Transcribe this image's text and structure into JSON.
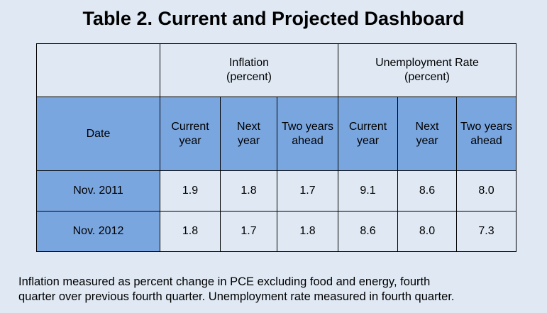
{
  "title": "Table 2. Current and Projected Dashboard",
  "table": {
    "groups": [
      {
        "label": "Inflation\n(percent)"
      },
      {
        "label": "Unemployment Rate\n(percent)"
      }
    ],
    "date_header": "Date",
    "subheaders": [
      "Current\nyear",
      "Next\nyear",
      "Two years\nahead",
      "Current\nyear",
      "Next\nyear",
      "Two years\nahead"
    ],
    "rows": [
      {
        "date": "Nov. 2011",
        "values": [
          "1.9",
          "1.8",
          "1.7",
          "9.1",
          "8.6",
          "8.0"
        ]
      },
      {
        "date": "Nov. 2012",
        "values": [
          "1.8",
          "1.7",
          "1.8",
          "8.6",
          "8.0",
          "7.3"
        ]
      }
    ]
  },
  "caption": "Inflation measured as percent change in PCE excluding food and energy, fourth\nquarter over previous fourth quarter.  Unemployment rate measured in fourth quarter.",
  "colors": {
    "background": "#dfe8f3",
    "header_blue": "#7aa6e0"
  }
}
